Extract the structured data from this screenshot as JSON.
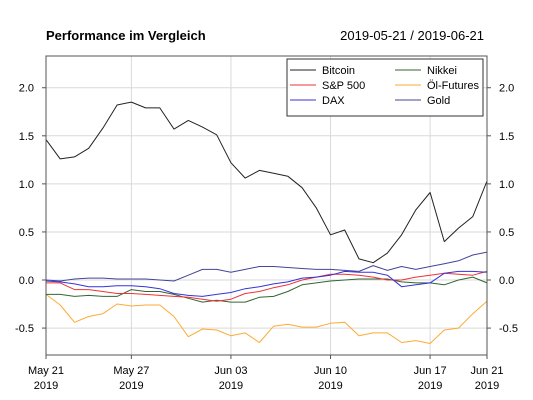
{
  "header": {
    "title": "Performance im Vergleich",
    "date_range": "2019-05-21 / 2019-06-21"
  },
  "chart_data": {
    "type": "line",
    "title": "Performance im Vergleich",
    "subtitle": "2019-05-21 / 2019-06-21",
    "xlabel": "",
    "ylabel": "",
    "x": [
      "2019-05-21",
      "2019-05-22",
      "2019-05-23",
      "2019-05-24",
      "2019-05-25",
      "2019-05-26",
      "2019-05-27",
      "2019-05-28",
      "2019-05-29",
      "2019-05-30",
      "2019-05-31",
      "2019-06-01",
      "2019-06-02",
      "2019-06-03",
      "2019-06-04",
      "2019-06-05",
      "2019-06-06",
      "2019-06-07",
      "2019-06-08",
      "2019-06-09",
      "2019-06-10",
      "2019-06-11",
      "2019-06-12",
      "2019-06-13",
      "2019-06-14",
      "2019-06-15",
      "2019-06-16",
      "2019-06-17",
      "2019-06-18",
      "2019-06-19",
      "2019-06-20",
      "2019-06-21"
    ],
    "xlim": [
      "2019-05-21",
      "2019-06-21"
    ],
    "ylim": [
      -0.78,
      2.33
    ],
    "yticks": [
      -0.5,
      0.0,
      0.5,
      1.0,
      1.5,
      2.0
    ],
    "ytick_labels": [
      "-0.5",
      "0.0",
      "0.5",
      "1.0",
      "1.5",
      "2.0"
    ],
    "xticks": [
      {
        "date": "2019-05-21",
        "line1": "May 21",
        "line2": "2019"
      },
      {
        "date": "2019-05-27",
        "line1": "May 27",
        "line2": "2019"
      },
      {
        "date": "2019-06-03",
        "line1": "Jun 03",
        "line2": "2019"
      },
      {
        "date": "2019-06-10",
        "line1": "Jun 10",
        "line2": "2019"
      },
      {
        "date": "2019-06-17",
        "line1": "Jun 17",
        "line2": "2019"
      },
      {
        "date": "2019-06-21",
        "line1": "Jun 21",
        "line2": "2019"
      }
    ],
    "grid": true,
    "legend_position": "top-right",
    "series": [
      {
        "name": "Bitcoin",
        "color": "#222222",
        "values": [
          1.46,
          1.26,
          1.28,
          1.37,
          1.58,
          1.82,
          1.85,
          1.79,
          1.79,
          1.57,
          1.66,
          1.59,
          1.51,
          1.22,
          1.06,
          1.14,
          1.11,
          1.08,
          0.96,
          0.75,
          0.47,
          0.52,
          0.22,
          0.18,
          0.28,
          0.47,
          0.73,
          0.91,
          0.4,
          0.54,
          0.66,
          1.03
        ]
      },
      {
        "name": "S&P 500",
        "color": "#ee3333",
        "values": [
          -0.03,
          -0.03,
          -0.1,
          -0.1,
          -0.12,
          -0.14,
          -0.14,
          -0.15,
          -0.16,
          -0.17,
          -0.18,
          -0.2,
          -0.22,
          -0.2,
          -0.14,
          -0.12,
          -0.08,
          -0.05,
          0.0,
          0.03,
          0.06,
          0.06,
          0.05,
          0.03,
          0.0,
          0.0,
          0.03,
          0.05,
          0.07,
          0.06,
          0.05,
          0.09
        ]
      },
      {
        "name": "DAX",
        "color": "#3333dd",
        "values": [
          -0.01,
          -0.02,
          -0.04,
          -0.07,
          -0.07,
          -0.06,
          -0.06,
          -0.07,
          -0.09,
          -0.14,
          -0.16,
          -0.17,
          -0.15,
          -0.13,
          -0.09,
          -0.07,
          -0.04,
          -0.02,
          0.02,
          0.03,
          0.05,
          0.09,
          0.08,
          0.08,
          0.05,
          -0.07,
          -0.05,
          -0.03,
          0.07,
          0.09,
          0.09,
          0.08
        ]
      },
      {
        "name": "Nikkei",
        "color": "#336633",
        "values": [
          -0.15,
          -0.15,
          -0.17,
          -0.16,
          -0.17,
          -0.17,
          -0.1,
          -0.12,
          -0.12,
          -0.15,
          -0.19,
          -0.23,
          -0.21,
          -0.23,
          -0.23,
          -0.18,
          -0.17,
          -0.12,
          -0.05,
          -0.03,
          -0.01,
          0.0,
          0.01,
          0.01,
          0.01,
          -0.02,
          -0.03,
          -0.03,
          -0.05,
          0.0,
          0.03,
          -0.03
        ]
      },
      {
        "name": "Öl-Futures",
        "color": "#ffaa33",
        "values": [
          -0.15,
          -0.26,
          -0.44,
          -0.38,
          -0.35,
          -0.25,
          -0.27,
          -0.26,
          -0.26,
          -0.38,
          -0.59,
          -0.51,
          -0.52,
          -0.58,
          -0.55,
          -0.65,
          -0.48,
          -0.46,
          -0.49,
          -0.49,
          -0.45,
          -0.44,
          -0.58,
          -0.55,
          -0.55,
          -0.65,
          -0.63,
          -0.66,
          -0.52,
          -0.5,
          -0.35,
          -0.22
        ]
      },
      {
        "name": "Gold",
        "color": "#444499",
        "values": [
          0.0,
          -0.01,
          0.01,
          0.02,
          0.02,
          0.01,
          0.01,
          0.01,
          0.0,
          -0.01,
          0.05,
          0.11,
          0.11,
          0.08,
          0.11,
          0.14,
          0.14,
          0.13,
          0.12,
          0.11,
          0.11,
          0.1,
          0.09,
          0.15,
          0.1,
          0.14,
          0.11,
          0.14,
          0.17,
          0.2,
          0.26,
          0.29
        ]
      }
    ]
  }
}
